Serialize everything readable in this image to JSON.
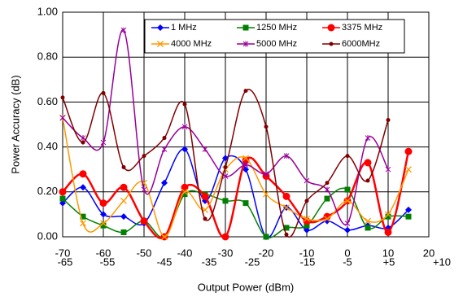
{
  "chart_data": {
    "type": "line",
    "x_label": "Output Power (dBm)",
    "y_label": "Power Accuracy (dB)",
    "x": [
      -70,
      -65,
      -60,
      -55,
      -50,
      -45,
      -40,
      -35,
      -30,
      -25,
      -20,
      -15,
      -10,
      -5,
      0,
      5,
      10,
      15
    ],
    "xlim": [
      -70,
      20
    ],
    "xticks": [
      -70,
      -60,
      -50,
      -40,
      -30,
      -20,
      -10,
      0,
      10,
      20
    ],
    "x_sublabels": [
      "-65",
      "-55",
      "-45",
      "-35",
      "-25",
      "-15",
      "-5",
      "+5",
      "+10"
    ],
    "ylim": [
      0,
      1
    ],
    "yticks": [
      {
        "value": 0,
        "label": "0.00"
      },
      {
        "value": 0.2,
        "label": "0.20"
      },
      {
        "value": 0.4,
        "label": "0.40"
      },
      {
        "value": 0.6,
        "label": "0.60"
      },
      {
        "value": 0.8,
        "label": "0.80"
      },
      {
        "value": 1,
        "label": "1.00"
      }
    ],
    "grid": true,
    "legend": "top",
    "series": [
      {
        "name": "1 MHz",
        "color": "#0000ff",
        "marker": "diamond",
        "values": [
          0.15,
          0.22,
          0.1,
          0.09,
          0.06,
          0.24,
          0.39,
          0.16,
          0.35,
          0.3,
          0.0,
          0.13,
          0.03,
          0.07,
          0.03,
          0.05,
          0.04,
          0.12
        ]
      },
      {
        "name": "1250 MHz",
        "color": "#008000",
        "marker": "square",
        "values": [
          0.17,
          0.09,
          0.05,
          0.02,
          0.07,
          0.0,
          0.19,
          0.19,
          0.16,
          0.15,
          0.0,
          0.04,
          0.05,
          0.17,
          0.21,
          0.04,
          0.09,
          0.09
        ]
      },
      {
        "name": "3375 MHz",
        "color": "#ff0000",
        "marker": "circle",
        "values": [
          0.2,
          0.28,
          0.15,
          0.22,
          0.07,
          0.0,
          0.22,
          0.18,
          0.0,
          0.34,
          0.27,
          0.18,
          0.07,
          0.09,
          0.16,
          0.33,
          0.02,
          0.38
        ]
      },
      {
        "name": "4000 MHz",
        "color": "#ff9900",
        "marker": "x",
        "values": [
          0.53,
          0.06,
          0.06,
          0.16,
          0.24,
          0.0,
          0.2,
          0.12,
          0.3,
          0.35,
          0.19,
          0.13,
          0.08,
          0.08,
          0.16,
          0.07,
          0.1,
          0.3
        ]
      },
      {
        "name": "5000 MHz",
        "color": "#990099",
        "marker": "star",
        "values": [
          0.53,
          0.44,
          0.42,
          0.92,
          0.21,
          0.39,
          0.49,
          0.39,
          0.27,
          0.32,
          0.28,
          0.36,
          0.25,
          0.21,
          0.06,
          0.44,
          0.3,
          null
        ]
      },
      {
        "name": "6000MHz",
        "color": "#800000",
        "marker": "dot",
        "values": [
          0.62,
          0.42,
          0.64,
          0.31,
          0.36,
          0.44,
          0.59,
          0.08,
          0.31,
          0.65,
          0.49,
          0.01,
          0.16,
          0.24,
          0.36,
          0.25,
          0.52,
          null
        ]
      }
    ]
  }
}
